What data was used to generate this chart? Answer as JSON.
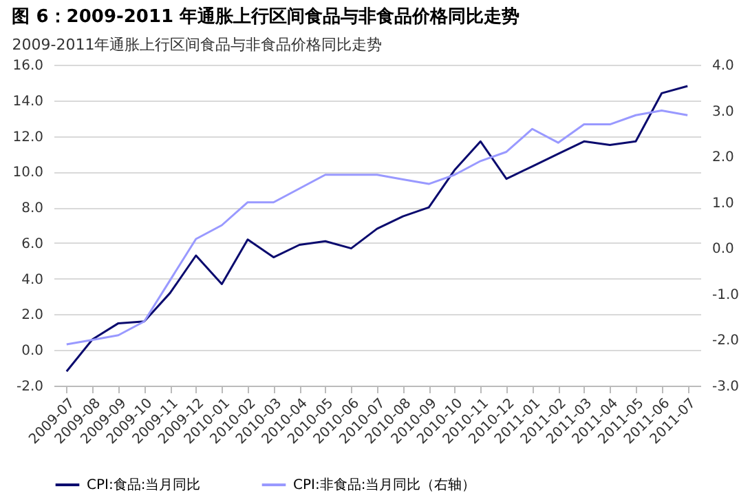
{
  "chart_data": {
    "type": "line",
    "title": "图 6：2009-2011 年通胀上行区间食品与非食品价格同比走势",
    "subtitle": "2009-2011年通胀上行区间食品与非食品价格同比走势",
    "categories": [
      "2009-07",
      "2009-08",
      "2009-09",
      "2009-10",
      "2009-11",
      "2009-12",
      "2010-01",
      "2010-02",
      "2010-03",
      "2010-04",
      "2010-05",
      "2010-06",
      "2010-07",
      "2010-08",
      "2010-09",
      "2010-10",
      "2010-11",
      "2010-12",
      "2011-01",
      "2011-02",
      "2011-03",
      "2011-04",
      "2011-05",
      "2011-06",
      "2011-07"
    ],
    "series": [
      {
        "name": "CPI:食品:当月同比",
        "color": "#0a0a6e",
        "values": [
          -1.2,
          0.6,
          1.5,
          1.6,
          3.2,
          5.3,
          3.7,
          6.2,
          5.2,
          5.9,
          6.1,
          5.7,
          6.8,
          7.5,
          8.0,
          10.1,
          11.7,
          9.6,
          10.3,
          11.0,
          11.7,
          11.5,
          11.7,
          14.4,
          14.8
        ]
      },
      {
        "name": "CPI:非食品:当月同比（右轴）",
        "color": "#9999ff",
        "axis": "y2",
        "values": [
          -2.1,
          -2.0,
          -1.9,
          -1.6,
          -0.7,
          0.2,
          0.5,
          1.0,
          1.0,
          1.3,
          1.6,
          1.6,
          1.6,
          1.5,
          1.4,
          1.6,
          1.9,
          2.1,
          2.6,
          2.3,
          2.7,
          2.7,
          2.9,
          3.0,
          2.9
        ]
      }
    ],
    "ylim": [
      -2,
      16
    ],
    "yticks": [
      {
        "value": -2,
        "label": "-2.0"
      },
      {
        "value": 0,
        "label": "0.0"
      },
      {
        "value": 2,
        "label": "2.0"
      },
      {
        "value": 4,
        "label": "4.0"
      },
      {
        "value": 6,
        "label": "6.0"
      },
      {
        "value": 8,
        "label": "8.0"
      },
      {
        "value": 10,
        "label": "10.0"
      },
      {
        "value": 12,
        "label": "12.0"
      },
      {
        "value": 14,
        "label": "14.0"
      },
      {
        "value": 16,
        "label": "16.0"
      }
    ],
    "y2lim": [
      -3,
      4
    ],
    "y2ticks": [
      {
        "value": -3,
        "label": "-3.0"
      },
      {
        "value": -2,
        "label": "-2.0"
      },
      {
        "value": -1,
        "label": "-1.0"
      },
      {
        "value": 0,
        "label": "0.0"
      },
      {
        "value": 1,
        "label": "1.0"
      },
      {
        "value": 2,
        "label": "2.0"
      },
      {
        "value": 3,
        "label": "3.0"
      },
      {
        "value": 4,
        "label": "4.0"
      }
    ],
    "grid": "y",
    "legend": "bottom",
    "marker": "none",
    "line_style": "solid"
  }
}
